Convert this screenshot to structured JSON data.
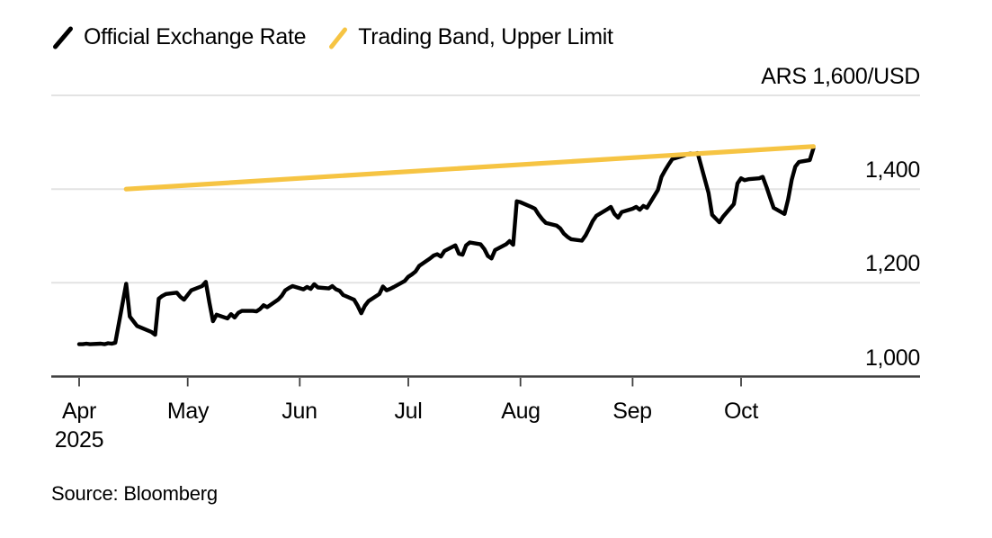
{
  "legend": {
    "items": [
      {
        "label": "Official Exchange Rate",
        "color": "#000000"
      },
      {
        "label": "Trading Band, Upper Limit",
        "color": "#F6C443"
      }
    ]
  },
  "source": {
    "text": "Source: Bloomberg"
  },
  "chart_data": {
    "type": "line",
    "title": "",
    "legend_position": "top-left",
    "colors": {
      "grid": "#E3E3E3",
      "axis": "#3F3F3F",
      "background": "#FFFFFF"
    },
    "y_axis": {
      "side": "right",
      "grid": true,
      "range": [
        1000,
        1600
      ],
      "tick_values": [
        1000,
        1200,
        1400,
        1600
      ],
      "tick_labels": [
        "1,000",
        "1,200",
        "1,400",
        "ARS 1,600/USD"
      ],
      "unit_tick_label": "ARS 1,600/USD"
    },
    "x_axis": {
      "range": [
        "2025-04-01",
        "2025-10-26"
      ],
      "tick_dates": [
        "2025-04-01",
        "2025-05-01",
        "2025-06-01",
        "2025-07-01",
        "2025-08-01",
        "2025-09-01",
        "2025-10-01"
      ],
      "tick_labels": [
        "Apr",
        "May",
        "Jun",
        "Jul",
        "Aug",
        "Sep",
        "Oct"
      ],
      "year_label": "2025"
    },
    "series": [
      {
        "name": "Official Exchange Rate",
        "color": "#000000",
        "points": [
          [
            "2025-04-01",
            1069
          ],
          [
            "2025-04-02",
            1069
          ],
          [
            "2025-04-03",
            1070
          ],
          [
            "2025-04-04",
            1069
          ],
          [
            "2025-04-07",
            1070
          ],
          [
            "2025-04-08",
            1069
          ],
          [
            "2025-04-09",
            1071
          ],
          [
            "2025-04-10",
            1070
          ],
          [
            "2025-04-11",
            1072
          ],
          [
            "2025-04-14",
            1198
          ],
          [
            "2025-04-15",
            1128
          ],
          [
            "2025-04-16",
            1118
          ],
          [
            "2025-04-17",
            1108
          ],
          [
            "2025-04-21",
            1095
          ],
          [
            "2025-04-22",
            1089
          ],
          [
            "2025-04-23",
            1166
          ],
          [
            "2025-04-24",
            1172
          ],
          [
            "2025-04-25",
            1176
          ],
          [
            "2025-04-28",
            1179
          ],
          [
            "2025-04-29",
            1170
          ],
          [
            "2025-04-30",
            1164
          ],
          [
            "2025-05-02",
            1184
          ],
          [
            "2025-05-05",
            1193
          ],
          [
            "2025-05-06",
            1202
          ],
          [
            "2025-05-07",
            1158
          ],
          [
            "2025-05-08",
            1118
          ],
          [
            "2025-05-09",
            1132
          ],
          [
            "2025-05-12",
            1124
          ],
          [
            "2025-05-13",
            1133
          ],
          [
            "2025-05-14",
            1126
          ],
          [
            "2025-05-15",
            1136
          ],
          [
            "2025-05-16",
            1140
          ],
          [
            "2025-05-19",
            1140
          ],
          [
            "2025-05-20",
            1139
          ],
          [
            "2025-05-21",
            1144
          ],
          [
            "2025-05-22",
            1152
          ],
          [
            "2025-05-23",
            1148
          ],
          [
            "2025-05-26",
            1164
          ],
          [
            "2025-05-27",
            1172
          ],
          [
            "2025-05-28",
            1184
          ],
          [
            "2025-05-29",
            1189
          ],
          [
            "2025-05-30",
            1193
          ],
          [
            "2025-06-02",
            1186
          ],
          [
            "2025-06-03",
            1191
          ],
          [
            "2025-06-04",
            1187
          ],
          [
            "2025-06-05",
            1197
          ],
          [
            "2025-06-06",
            1190
          ],
          [
            "2025-06-09",
            1188
          ],
          [
            "2025-06-10",
            1193
          ],
          [
            "2025-06-11",
            1186
          ],
          [
            "2025-06-12",
            1183
          ],
          [
            "2025-06-13",
            1174
          ],
          [
            "2025-06-16",
            1164
          ],
          [
            "2025-06-17",
            1151
          ],
          [
            "2025-06-18",
            1135
          ],
          [
            "2025-06-19",
            1151
          ],
          [
            "2025-06-20",
            1161
          ],
          [
            "2025-06-23",
            1176
          ],
          [
            "2025-06-24",
            1192
          ],
          [
            "2025-06-25",
            1184
          ],
          [
            "2025-06-26",
            1187
          ],
          [
            "2025-06-27",
            1191
          ],
          [
            "2025-06-30",
            1204
          ],
          [
            "2025-07-01",
            1213
          ],
          [
            "2025-07-02",
            1218
          ],
          [
            "2025-07-03",
            1224
          ],
          [
            "2025-07-04",
            1236
          ],
          [
            "2025-07-07",
            1252
          ],
          [
            "2025-07-08",
            1258
          ],
          [
            "2025-07-09",
            1261
          ],
          [
            "2025-07-10",
            1256
          ],
          [
            "2025-07-11",
            1268
          ],
          [
            "2025-07-14",
            1280
          ],
          [
            "2025-07-15",
            1262
          ],
          [
            "2025-07-16",
            1260
          ],
          [
            "2025-07-17",
            1280
          ],
          [
            "2025-07-18",
            1286
          ],
          [
            "2025-07-21",
            1282
          ],
          [
            "2025-07-22",
            1272
          ],
          [
            "2025-07-23",
            1257
          ],
          [
            "2025-07-24",
            1252
          ],
          [
            "2025-07-25",
            1270
          ],
          [
            "2025-07-28",
            1282
          ],
          [
            "2025-07-29",
            1289
          ],
          [
            "2025-07-30",
            1281
          ],
          [
            "2025-07-31",
            1374
          ],
          [
            "2025-08-01",
            1372
          ],
          [
            "2025-08-04",
            1362
          ],
          [
            "2025-08-05",
            1358
          ],
          [
            "2025-08-06",
            1346
          ],
          [
            "2025-08-07",
            1336
          ],
          [
            "2025-08-08",
            1328
          ],
          [
            "2025-08-11",
            1322
          ],
          [
            "2025-08-12",
            1316
          ],
          [
            "2025-08-13",
            1305
          ],
          [
            "2025-08-14",
            1298
          ],
          [
            "2025-08-15",
            1293
          ],
          [
            "2025-08-18",
            1290
          ],
          [
            "2025-08-19",
            1301
          ],
          [
            "2025-08-20",
            1316
          ],
          [
            "2025-08-21",
            1332
          ],
          [
            "2025-08-22",
            1343
          ],
          [
            "2025-08-25",
            1357
          ],
          [
            "2025-08-26",
            1362
          ],
          [
            "2025-08-27",
            1347
          ],
          [
            "2025-08-28",
            1339
          ],
          [
            "2025-08-29",
            1351
          ],
          [
            "2025-09-01",
            1358
          ],
          [
            "2025-09-02",
            1362
          ],
          [
            "2025-09-03",
            1356
          ],
          [
            "2025-09-04",
            1364
          ],
          [
            "2025-09-05",
            1360
          ],
          [
            "2025-09-08",
            1398
          ],
          [
            "2025-09-09",
            1426
          ],
          [
            "2025-09-10",
            1440
          ],
          [
            "2025-09-11",
            1453
          ],
          [
            "2025-09-12",
            1464
          ],
          [
            "2025-09-15",
            1471
          ],
          [
            "2025-09-16",
            1474
          ],
          [
            "2025-09-17",
            1476
          ],
          [
            "2025-09-18",
            1475
          ],
          [
            "2025-09-19",
            1477
          ],
          [
            "2025-09-22",
            1392
          ],
          [
            "2025-09-23",
            1345
          ],
          [
            "2025-09-24",
            1337
          ],
          [
            "2025-09-25",
            1329
          ],
          [
            "2025-09-26",
            1341
          ],
          [
            "2025-09-29",
            1368
          ],
          [
            "2025-09-30",
            1412
          ],
          [
            "2025-10-01",
            1423
          ],
          [
            "2025-10-02",
            1419
          ],
          [
            "2025-10-03",
            1421
          ],
          [
            "2025-10-06",
            1423
          ],
          [
            "2025-10-07",
            1426
          ],
          [
            "2025-10-08",
            1405
          ],
          [
            "2025-10-09",
            1382
          ],
          [
            "2025-10-10",
            1360
          ],
          [
            "2025-10-13",
            1347
          ],
          [
            "2025-10-14",
            1378
          ],
          [
            "2025-10-15",
            1420
          ],
          [
            "2025-10-16",
            1448
          ],
          [
            "2025-10-17",
            1458
          ],
          [
            "2025-10-20",
            1462
          ],
          [
            "2025-10-21",
            1487
          ]
        ]
      },
      {
        "name": "Trading Band, Upper Limit",
        "color": "#F6C443",
        "points": [
          [
            "2025-04-14",
            1400
          ],
          [
            "2025-10-21",
            1491
          ]
        ]
      }
    ]
  }
}
